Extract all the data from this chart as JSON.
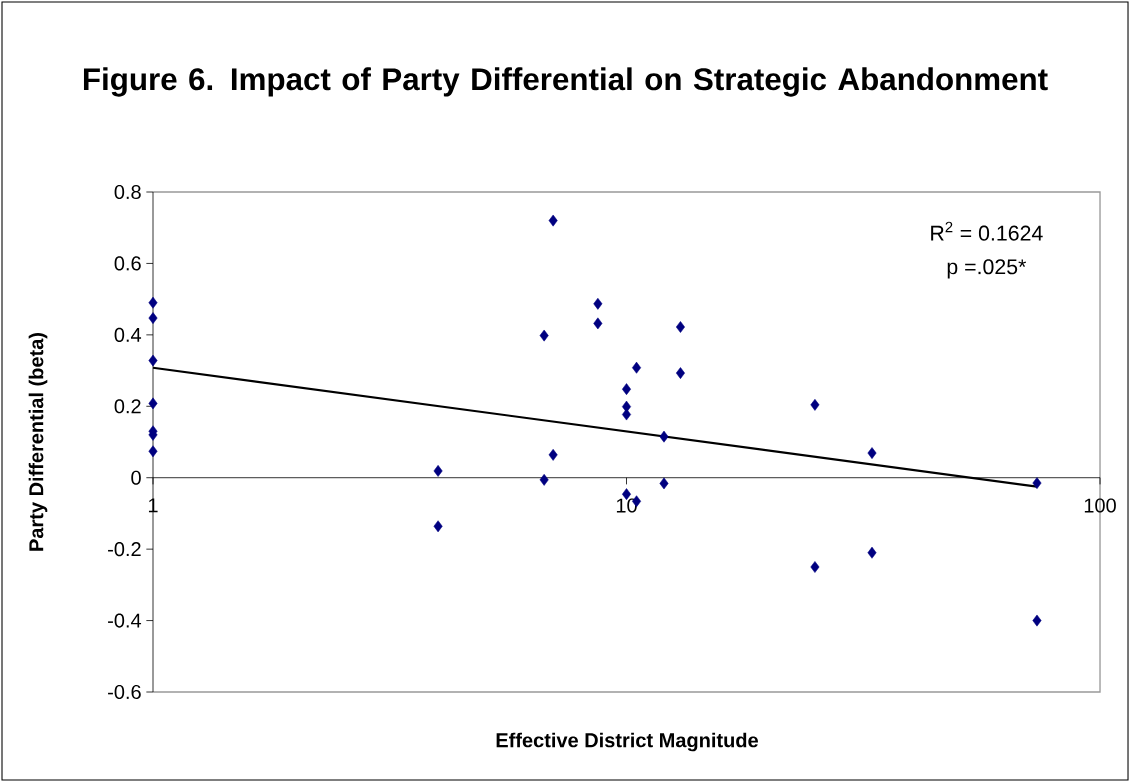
{
  "chart_data": {
    "type": "scatter",
    "title": "Figure 6.  Impact of Party Differential on Strategic Abandonment",
    "xlabel": "Effective District Magnitude",
    "ylabel": "Party Differential (beta)",
    "log": "x",
    "xlim": [
      1,
      100
    ],
    "xticks": [
      1,
      10,
      100
    ],
    "ylim": [
      -0.6,
      0.8
    ],
    "yticks": [
      0.8,
      0.6,
      0.4,
      0.2,
      0,
      -0.2,
      -0.4,
      -0.6
    ],
    "annotations": [
      "R$^{2}$ = 0.1624",
      "p =.025*"
    ],
    "series": [
      {
        "type": "scatter",
        "marker": "diamond",
        "color": "#000080",
        "x": [
          1,
          1,
          1,
          1,
          1,
          1,
          1,
          4,
          4,
          7.0,
          6.7,
          7.0,
          6.7,
          8.7,
          8.7,
          10,
          10,
          10,
          10,
          10.5,
          10.5,
          12,
          12,
          13,
          13,
          25,
          25,
          33,
          33,
          73.6,
          73.6
        ],
        "values": [
          0.49,
          0.447,
          0.328,
          0.208,
          0.13,
          0.12,
          0.074,
          0.019,
          -0.136,
          0.72,
          0.398,
          0.064,
          -0.006,
          0.487,
          0.432,
          0.248,
          0.199,
          0.177,
          -0.046,
          0.308,
          -0.066,
          0.115,
          -0.016,
          0.422,
          0.293,
          0.204,
          -0.25,
          0.069,
          -0.21,
          -0.015,
          -0.4
        ]
      },
      {
        "type": "line",
        "marker": "none",
        "line_style": "solid",
        "color": "#000000",
        "x": [
          1,
          73.6
        ],
        "values": [
          0.308,
          -0.025
        ]
      }
    ]
  }
}
